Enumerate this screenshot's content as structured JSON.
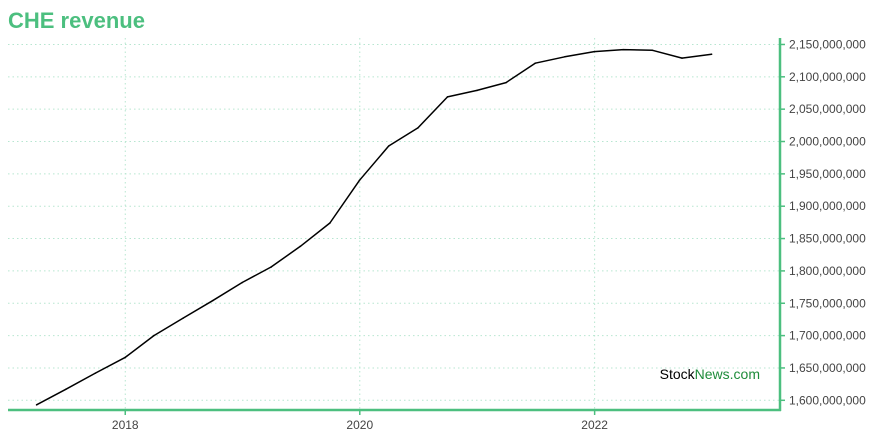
{
  "chart_data": {
    "type": "line",
    "title": "CHE revenue",
    "xlabel": "",
    "ylabel": "",
    "x_ticks": [
      "2018",
      "2020",
      "2022"
    ],
    "y_ticks": [
      "1,600,000,000",
      "1,650,000,000",
      "1,700,000,000",
      "1,750,000,000",
      "1,800,000,000",
      "1,850,000,000",
      "1,900,000,000",
      "1,950,000,000",
      "2,000,000,000",
      "2,050,000,000",
      "2,100,000,000",
      "2,150,000,000"
    ],
    "ylim": [
      1585000000,
      2160000000
    ],
    "xlim": [
      "2017-01-01",
      "2023-08-01"
    ],
    "grid": true,
    "y_axis_side": "right",
    "series": [
      {
        "x": [
          "2017-03-31",
          "2017-06-30",
          "2017-09-30",
          "2017-12-31",
          "2018-03-31",
          "2018-06-30",
          "2018-09-30",
          "2018-12-31",
          "2019-03-31",
          "2019-06-30",
          "2019-09-30",
          "2019-12-31",
          "2020-03-31",
          "2020-06-30",
          "2020-09-30",
          "2020-12-31",
          "2021-03-31",
          "2021-06-30",
          "2021-09-30",
          "2021-12-31",
          "2022-03-31",
          "2022-06-30",
          "2022-09-30",
          "2022-12-31"
        ],
        "values": [
          1593000000,
          1617000000,
          1642000000,
          1666000000,
          1700000000,
          1727000000,
          1754000000,
          1782000000,
          1806000000,
          1838000000,
          1874000000,
          1940000000,
          1993000000,
          2021000000,
          2069000000,
          2079000000,
          2091000000,
          2121000000,
          2131000000,
          2139000000,
          2142000000,
          2141000000,
          2129000000,
          2135000000
        ]
      }
    ]
  },
  "colors": {
    "title": "#4cbf7f",
    "axis": "#4cbf7f",
    "grid": "#b7e6d0",
    "line": "#000000",
    "watermark_stock": "#000000",
    "watermark_news": "#1e8c3a"
  },
  "watermark": {
    "stock": "Stock",
    "news": "News",
    "com": ".com"
  }
}
